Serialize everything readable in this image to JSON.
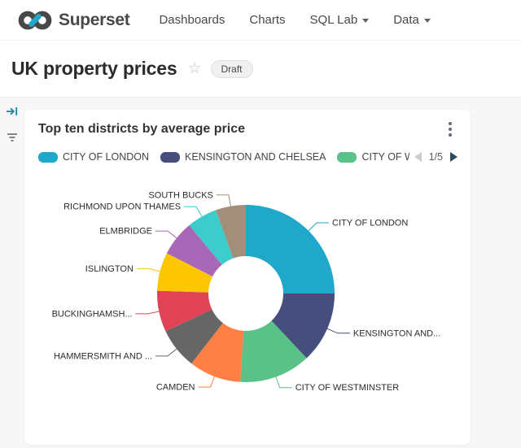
{
  "brand": {
    "name": "Superset",
    "logo_dark": "#484848",
    "logo_accent": "#20A7C9"
  },
  "nav": {
    "items": [
      {
        "label": "Dashboards",
        "caret": false
      },
      {
        "label": "Charts",
        "caret": false
      },
      {
        "label": "SQL Lab",
        "caret": true
      },
      {
        "label": "Data",
        "caret": true
      }
    ]
  },
  "dashboard": {
    "title": "UK property prices",
    "status_badge": "Draft"
  },
  "filter_bar": {
    "icons": [
      "arrow-right-to-bar-icon",
      "filter-lines-icon"
    ]
  },
  "chart_card": {
    "title": "Top ten districts by average price",
    "menu_icon": "kebab-menu-icon",
    "legend_items": [
      {
        "label": "CITY OF LONDON",
        "color": "#1FA8C9"
      },
      {
        "label": "KENSINGTON AND CHELSEA",
        "color": "#454E7C"
      },
      {
        "label": "CITY OF WES",
        "color": "#5AC189"
      }
    ],
    "pagination": {
      "prev_enabled": false,
      "label": "1/5",
      "next_enabled": true
    }
  },
  "chart_data": {
    "type": "pie",
    "subtype": "donut",
    "title": "Top ten districts by average price",
    "labels": [
      "CITY OF LONDON",
      "KENSINGTON AND...",
      "CITY OF WESTMINSTER",
      "CAMDEN",
      "HAMMERSMITH AND ...",
      "BUCKINGHAMSH...",
      "ISLINGTON",
      "ELMBRIDGE",
      "RICHMOND UPON THAMES",
      "SOUTH BUCKS"
    ],
    "values_pct": [
      25,
      13,
      13,
      9.5,
      7.5,
      7.5,
      7,
      6.5,
      5.5,
      5.5
    ],
    "colors": [
      "#1FA8C9",
      "#454E7C",
      "#5AC189",
      "#FF7F44",
      "#666666",
      "#E04355",
      "#FCC700",
      "#A868B7",
      "#3CCCCB",
      "#A38F79"
    ],
    "legend_position": "top",
    "label_style": "outside-with-leader-lines",
    "start_angle_deg": 0,
    "direction": "clockwise"
  },
  "colors": {
    "page_bg": "#F7F7F8",
    "accent_teal": "#1FA8C9",
    "rail_icon_teal": "#1985A0",
    "pager_next": "#2B4A60",
    "pager_prev_disabled": "#C9CDD1"
  }
}
